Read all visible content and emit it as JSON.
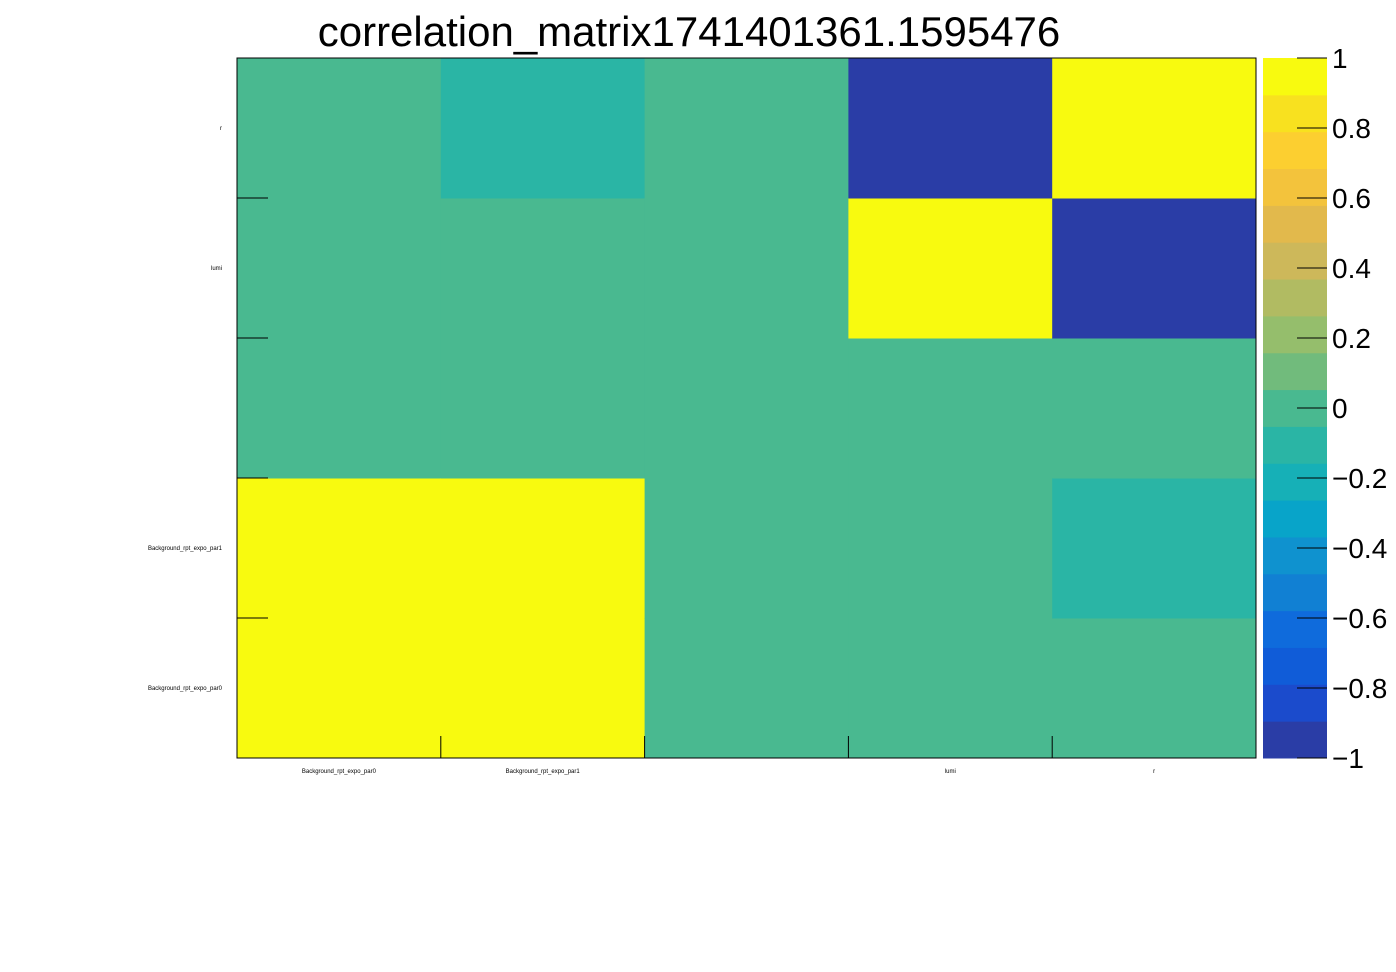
{
  "chart_data": {
    "type": "heatmap",
    "title": "correlation_matrix1741401361.1595476",
    "x_labels": [
      "Background_rpt_expo_par0",
      "Background_rpt_expo_par1",
      "",
      "lumi",
      "r"
    ],
    "y_labels": [
      "Background_rpt_expo_par0",
      "Background_rpt_expo_par1",
      "",
      "lumi",
      "r"
    ],
    "values": [
      [
        1.0,
        0.95,
        0.0,
        0.0,
        0.0
      ],
      [
        0.95,
        1.0,
        0.0,
        0.0,
        -0.1
      ],
      [
        0.0,
        0.0,
        0.0,
        0.0,
        0.0
      ],
      [
        0.0,
        0.0,
        0.0,
        1.0,
        -0.9
      ],
      [
        0.0,
        -0.1,
        0.0,
        -0.9,
        1.0
      ]
    ],
    "zlim": [
      -1,
      1
    ],
    "colorbar_ticks": [
      "1",
      "0.8",
      "0.6",
      "0.4",
      "0.2",
      "0",
      "−0.2",
      "−0.4",
      "−0.6",
      "−0.8",
      "−1"
    ],
    "colorbar_tick_values": [
      1,
      0.8,
      0.6,
      0.4,
      0.2,
      0,
      -0.2,
      -0.4,
      -0.6,
      -0.8,
      -1
    ],
    "palette": [
      "#2a3da6",
      "#1b4bcc",
      "#105cd8",
      "#0f6bdc",
      "#1180d3",
      "#0f92cf",
      "#08a4c9",
      "#16b0b7",
      "#2ab5a5",
      "#49b990",
      "#71bb7c",
      "#95be6c",
      "#b1bb62",
      "#cdb85a",
      "#e2b94c",
      "#f3c33c",
      "#fccf30",
      "#f8e11f",
      "#f8fa0f"
    ],
    "grid": false
  }
}
